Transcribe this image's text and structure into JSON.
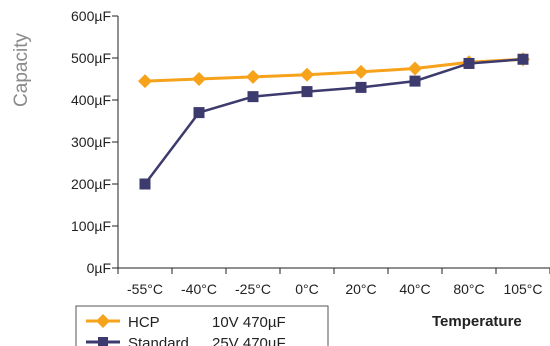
{
  "chart_data": {
    "type": "line",
    "title": "",
    "xlabel": "Temperature",
    "ylabel": "Capacity",
    "categories": [
      "-55°C",
      "-40°C",
      "-25°C",
      "0°C",
      "20°C",
      "40°C",
      "80°C",
      "105°C"
    ],
    "ylim": [
      0,
      600
    ],
    "yticks": [
      0,
      100,
      200,
      300,
      400,
      500,
      600
    ],
    "ytick_labels": [
      "0µF",
      "100µF",
      "200µF",
      "300µF",
      "400µF",
      "500µF",
      "600µF"
    ],
    "grid": false,
    "legend_position": "bottom-left",
    "series": [
      {
        "name": "HCP",
        "legend_note": "10V 470µF",
        "color": "#F7A21B",
        "marker": "diamond",
        "values": [
          445,
          450,
          455,
          460,
          467,
          475,
          490,
          497
        ]
      },
      {
        "name": "Standard",
        "legend_note": "25V 470µF",
        "color": "#3D3A6E",
        "marker": "square",
        "values": [
          200,
          370,
          408,
          420,
          430,
          445,
          487,
          497
        ]
      }
    ]
  }
}
